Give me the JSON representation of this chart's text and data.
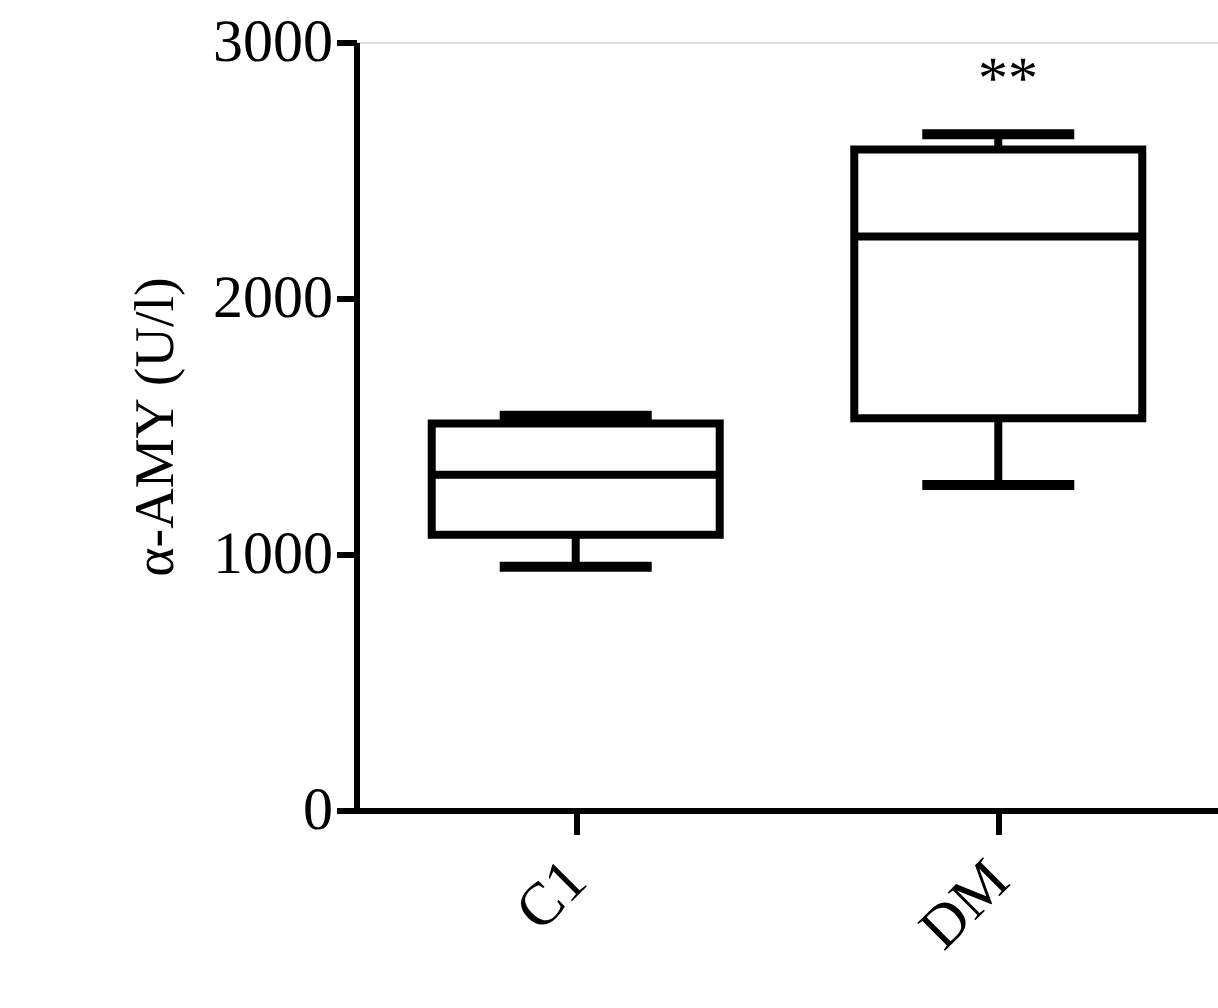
{
  "chart_data": {
    "type": "box",
    "categories": [
      "C1",
      "DM"
    ],
    "ylabel": "α-AMY (U/l)",
    "ylim": [
      0,
      3000
    ],
    "yticks": [
      0,
      1000,
      2000,
      3000
    ],
    "series": [
      {
        "color": "#000000",
        "boxes": [
          {
            "low": 950,
            "q1": 1075,
            "median": 1310,
            "q3": 1510,
            "high": 1540
          },
          {
            "low": 1270,
            "q1": 1530,
            "median": 2240,
            "q3": 2580,
            "high": 2640
          }
        ]
      }
    ],
    "annotations": [
      "**"
    ]
  }
}
